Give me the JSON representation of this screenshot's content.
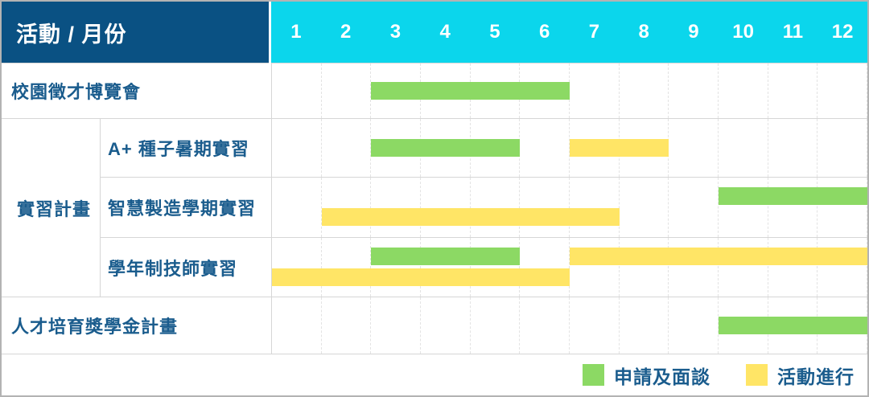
{
  "header": {
    "corner_label": "活動 / 月份"
  },
  "colors": {
    "navy": "#0A5183",
    "cyan": "#0BD6EC",
    "green": "#8CD964",
    "yellow": "#FFE566",
    "label_text": "#1A5C8D",
    "grid_line": "#D6D6D6",
    "grid_dash": "#E3E3E3",
    "outer_border": "#B3B3B3"
  },
  "chart_data": {
    "type": "gantt",
    "unit": "month",
    "x_range": [
      1,
      12
    ],
    "months": [
      "1",
      "2",
      "3",
      "4",
      "5",
      "6",
      "7",
      "8",
      "9",
      "10",
      "11",
      "12"
    ],
    "group_label": "實習計畫",
    "rows": [
      {
        "activity": "校園徵才博覽會",
        "group": null,
        "bars": [
          {
            "kind": "green",
            "start": 3,
            "end": 6,
            "level": "center"
          }
        ]
      },
      {
        "activity": "A+ 種子暑期實習",
        "group": "實習計畫",
        "bars": [
          {
            "kind": "green",
            "start": 3,
            "end": 5,
            "level": "center"
          },
          {
            "kind": "yellow",
            "start": 7,
            "end": 8,
            "level": "center"
          }
        ]
      },
      {
        "activity": "智慧製造學期實習",
        "group": "實習計畫",
        "bars": [
          {
            "kind": "green",
            "start": 10,
            "end": 12,
            "level": "top"
          },
          {
            "kind": "yellow",
            "start": 2,
            "end": 7,
            "level": "bottom"
          }
        ]
      },
      {
        "activity": "學年制技師實習",
        "group": "實習計畫",
        "bars": [
          {
            "kind": "green",
            "start": 3,
            "end": 5,
            "level": "top"
          },
          {
            "kind": "yellow",
            "start": 7,
            "end": 12,
            "level": "top"
          },
          {
            "kind": "yellow",
            "start": 1,
            "end": 6,
            "level": "bottom"
          }
        ]
      },
      {
        "activity": "人才培育獎學金計畫",
        "group": null,
        "bars": [
          {
            "kind": "green",
            "start": 10,
            "end": 12,
            "level": "center"
          }
        ]
      }
    ],
    "legend": [
      {
        "kind": "green",
        "label": "申請及面談"
      },
      {
        "kind": "yellow",
        "label": "活動進行"
      }
    ]
  }
}
